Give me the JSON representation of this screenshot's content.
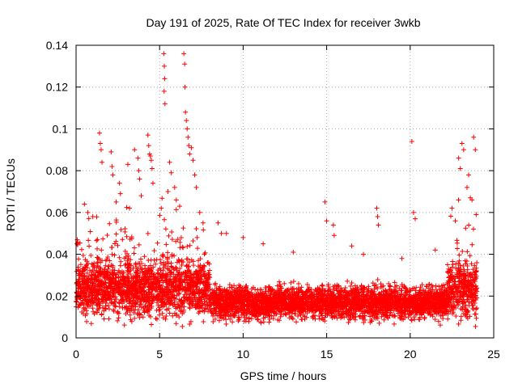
{
  "chart_data": {
    "type": "scatter",
    "title": "Day 191 of 2025, Rate Of TEC Index for receiver 3wkb",
    "xlabel": "GPS time / hours",
    "ylabel": "ROTI / TECUs",
    "xlim": [
      0,
      25
    ],
    "ylim": [
      0,
      0.14
    ],
    "xticks": [
      "0",
      "5",
      "10",
      "15",
      "20",
      "25"
    ],
    "yticks": [
      "0",
      "0.02",
      "0.04",
      "0.06",
      "0.08",
      "0.1",
      "0.12",
      "0.14"
    ],
    "grid": true,
    "marker": "plus",
    "color": "#ff0000",
    "series": [
      {
        "name": "ROTI",
        "x": [
          5.25,
          5.28,
          5.3,
          5.27,
          5.32,
          6.45,
          6.5,
          6.52,
          6.55,
          6.6,
          6.65,
          6.7,
          6.75,
          6.8,
          1.4,
          1.45,
          1.5,
          1.55,
          2.1,
          2.15,
          2.2,
          2.6,
          2.65,
          3.1,
          3.5,
          3.7,
          3.75,
          3.8,
          4.3,
          4.35,
          4.4,
          4.45,
          4.5,
          4.55,
          4.6,
          5.6,
          5.7,
          5.9,
          6.0,
          6.2,
          6.9,
          7.0,
          7.1,
          7.2,
          0.5,
          0.7,
          1.0,
          2.4,
          3.2,
          3.9,
          5.1,
          5.5,
          7.4,
          7.6,
          8.5,
          8.7,
          14.9,
          15.0,
          15.4,
          15.45,
          18.0,
          18.05,
          18.1,
          20.1,
          20.2,
          20.3,
          22.5,
          22.7,
          22.9,
          23.0,
          23.1,
          23.2,
          23.4,
          23.5,
          23.6,
          23.7,
          23.8,
          23.9,
          9.0,
          10.0,
          11.2,
          13.0,
          16.5,
          17.2,
          19.5,
          21.5,
          0.05,
          23.95
        ],
        "values": [
          0.136,
          0.13,
          0.124,
          0.118,
          0.112,
          0.136,
          0.131,
          0.12,
          0.108,
          0.104,
          0.1,
          0.096,
          0.092,
          0.088,
          0.098,
          0.093,
          0.09,
          0.084,
          0.089,
          0.082,
          0.078,
          0.074,
          0.069,
          0.083,
          0.09,
          0.086,
          0.08,
          0.076,
          0.097,
          0.092,
          0.088,
          0.087,
          0.085,
          0.081,
          0.074,
          0.084,
          0.079,
          0.072,
          0.066,
          0.063,
          0.091,
          0.085,
          0.078,
          0.072,
          0.064,
          0.06,
          0.058,
          0.065,
          0.062,
          0.068,
          0.062,
          0.07,
          0.06,
          0.055,
          0.055,
          0.05,
          0.065,
          0.056,
          0.054,
          0.049,
          0.062,
          0.058,
          0.054,
          0.094,
          0.06,
          0.057,
          0.062,
          0.056,
          0.086,
          0.081,
          0.093,
          0.09,
          0.072,
          0.078,
          0.067,
          0.066,
          0.096,
          0.09,
          0.05,
          0.048,
          0.045,
          0.041,
          0.044,
          0.04,
          0.038,
          0.042,
          0.045,
          0.059
        ]
      }
    ]
  }
}
